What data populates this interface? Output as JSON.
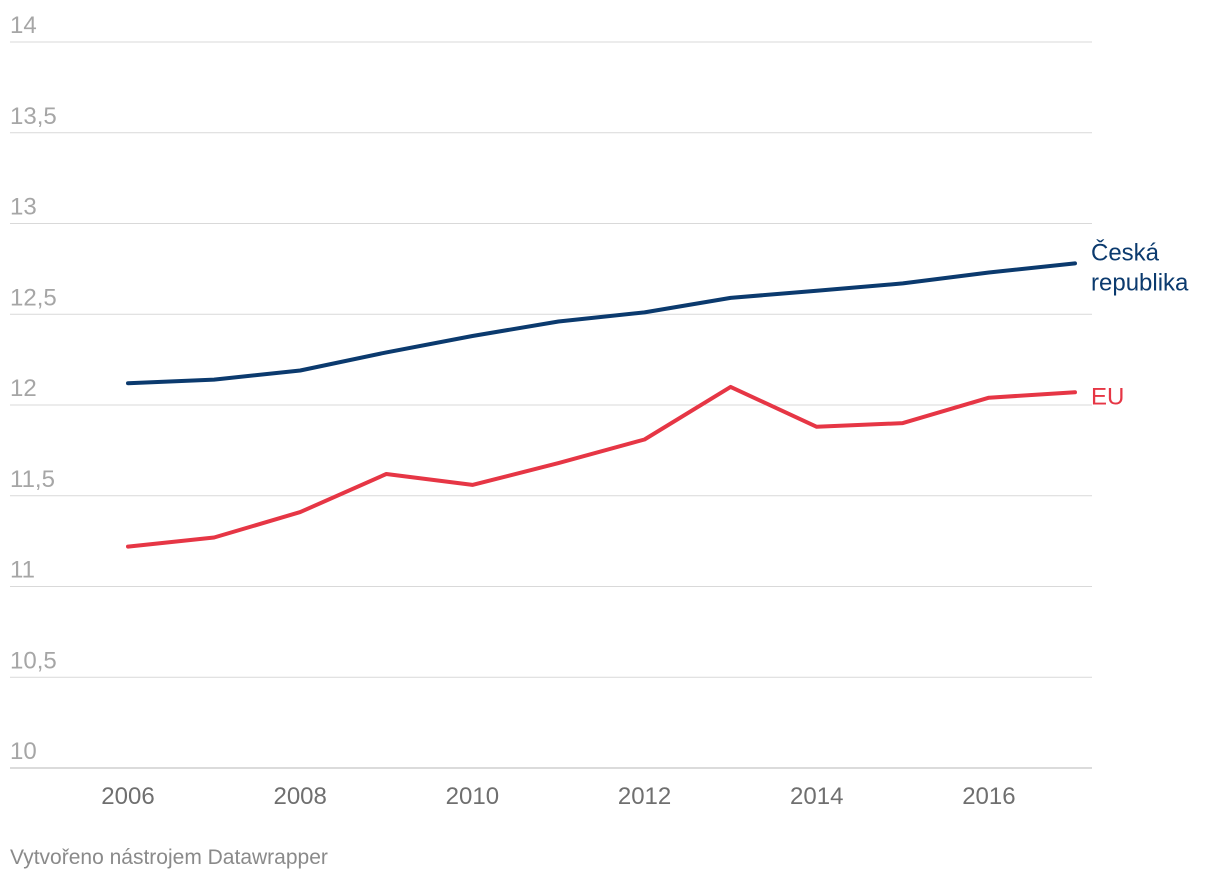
{
  "chart_data": {
    "type": "line",
    "title": "",
    "xlabel": "",
    "ylabel": "",
    "x": [
      2006,
      2007,
      2008,
      2009,
      2010,
      2011,
      2012,
      2013,
      2014,
      2015,
      2016,
      2017
    ],
    "x_ticks": [
      "2006",
      "2008",
      "2010",
      "2012",
      "2014",
      "2016"
    ],
    "y_ticks": [
      "14",
      "13,5",
      "13",
      "12,5",
      "12",
      "11,5",
      "11",
      "10,5",
      "10"
    ],
    "ylim": [
      10,
      14
    ],
    "grid": true,
    "legend": "direct-labels-right",
    "series": [
      {
        "name": "Česká republika",
        "label_lines": [
          "Česká",
          "republika"
        ],
        "color": "#0b3a6e",
        "values": [
          12.12,
          12.14,
          12.19,
          12.29,
          12.38,
          12.46,
          12.51,
          12.59,
          12.63,
          12.67,
          12.73,
          12.78
        ]
      },
      {
        "name": "EU",
        "label_lines": [
          "EU"
        ],
        "color": "#e63645",
        "values": [
          11.22,
          11.27,
          11.41,
          11.62,
          11.56,
          11.68,
          11.81,
          12.1,
          11.88,
          11.9,
          12.04,
          12.07
        ]
      }
    ]
  },
  "footer": {
    "credit": "Vytvořeno nástrojem Datawrapper"
  }
}
